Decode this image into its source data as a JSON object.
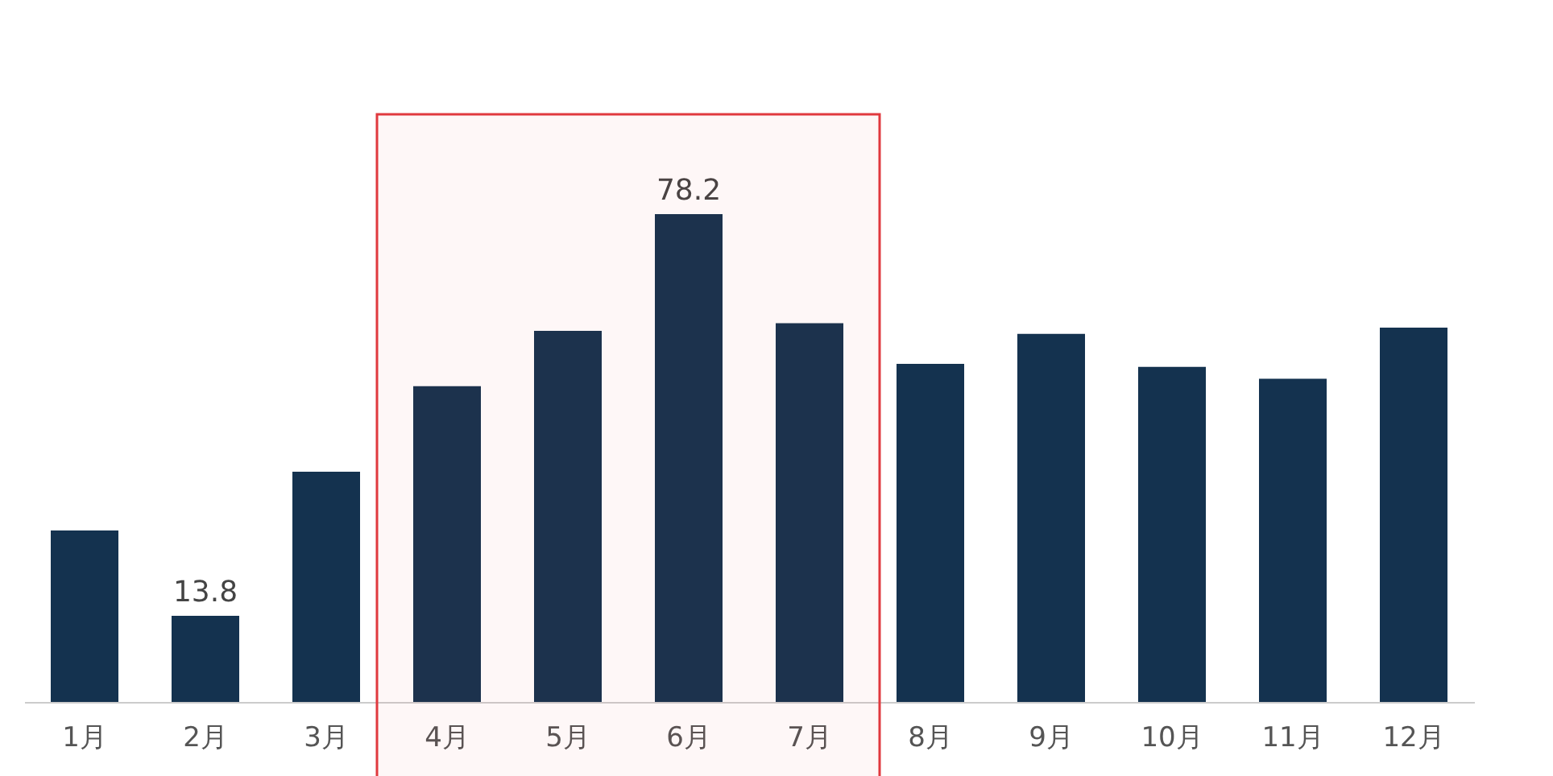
{
  "chart_data": {
    "type": "bar",
    "categories": [
      "1月",
      "2月",
      "3月",
      "4月",
      "5月",
      "6月",
      "7月",
      "8月",
      "9月",
      "10月",
      "11月",
      "12月"
    ],
    "values": [
      27.5,
      13.8,
      36.9,
      50.6,
      59.5,
      78.2,
      60.7,
      54.2,
      59.0,
      53.7,
      51.8,
      60.0
    ],
    "value_labels": [
      null,
      "13.8",
      null,
      null,
      null,
      "78.2",
      null,
      null,
      null,
      null,
      null,
      null
    ],
    "color": "#14324f",
    "grid": false,
    "tick_labels": "x",
    "bands": [
      {
        "axis": "x",
        "from": "4月",
        "to": "7月",
        "color": "#e0393e"
      }
    ]
  }
}
